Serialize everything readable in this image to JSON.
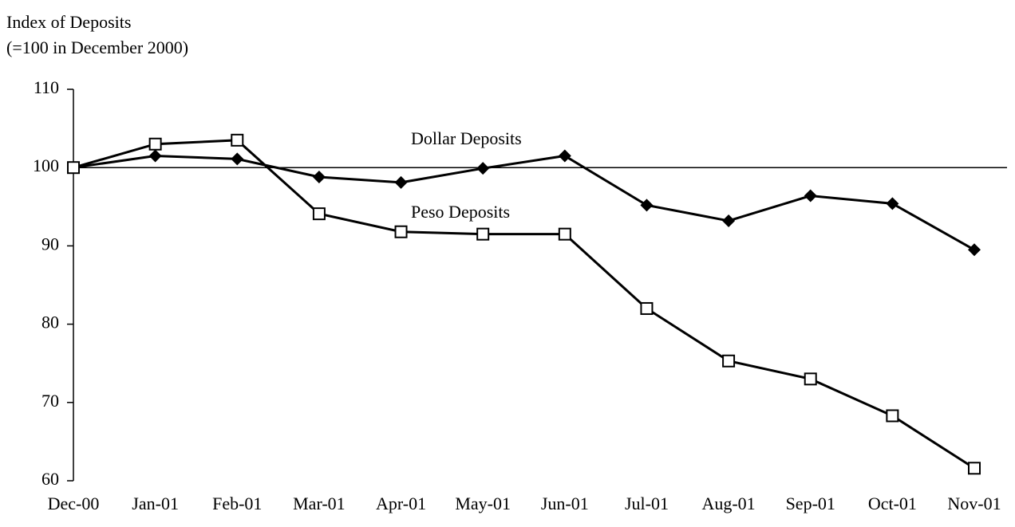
{
  "chart_data": {
    "type": "line",
    "title": "Index of Deposits",
    "subtitle": "(=100 in December 2000)",
    "categories": [
      "Dec-00",
      "Jan-01",
      "Feb-01",
      "Mar-01",
      "Apr-01",
      "May-01",
      "Jun-01",
      "Jul-01",
      "Aug-01",
      "Sep-01",
      "Oct-01",
      "Nov-01"
    ],
    "series": [
      {
        "name": "Dollar Deposits",
        "color": "#000000",
        "marker": "diamond",
        "values": [
          100,
          101.5,
          101.1,
          98.8,
          98.1,
          99.9,
          101.5,
          95.2,
          93.2,
          96.4,
          95.4,
          89.5
        ]
      },
      {
        "name": "Peso Deposits",
        "color": "#000000",
        "marker": "square",
        "values": [
          100,
          103,
          103.5,
          94.1,
          91.8,
          91.5,
          91.5,
          82,
          75.3,
          73,
          68.3,
          61.6
        ]
      }
    ],
    "ylim": [
      60,
      110
    ],
    "yticks": [
      60,
      70,
      80,
      90,
      100,
      110
    ],
    "x_axis_at": 100,
    "grid": false
  }
}
